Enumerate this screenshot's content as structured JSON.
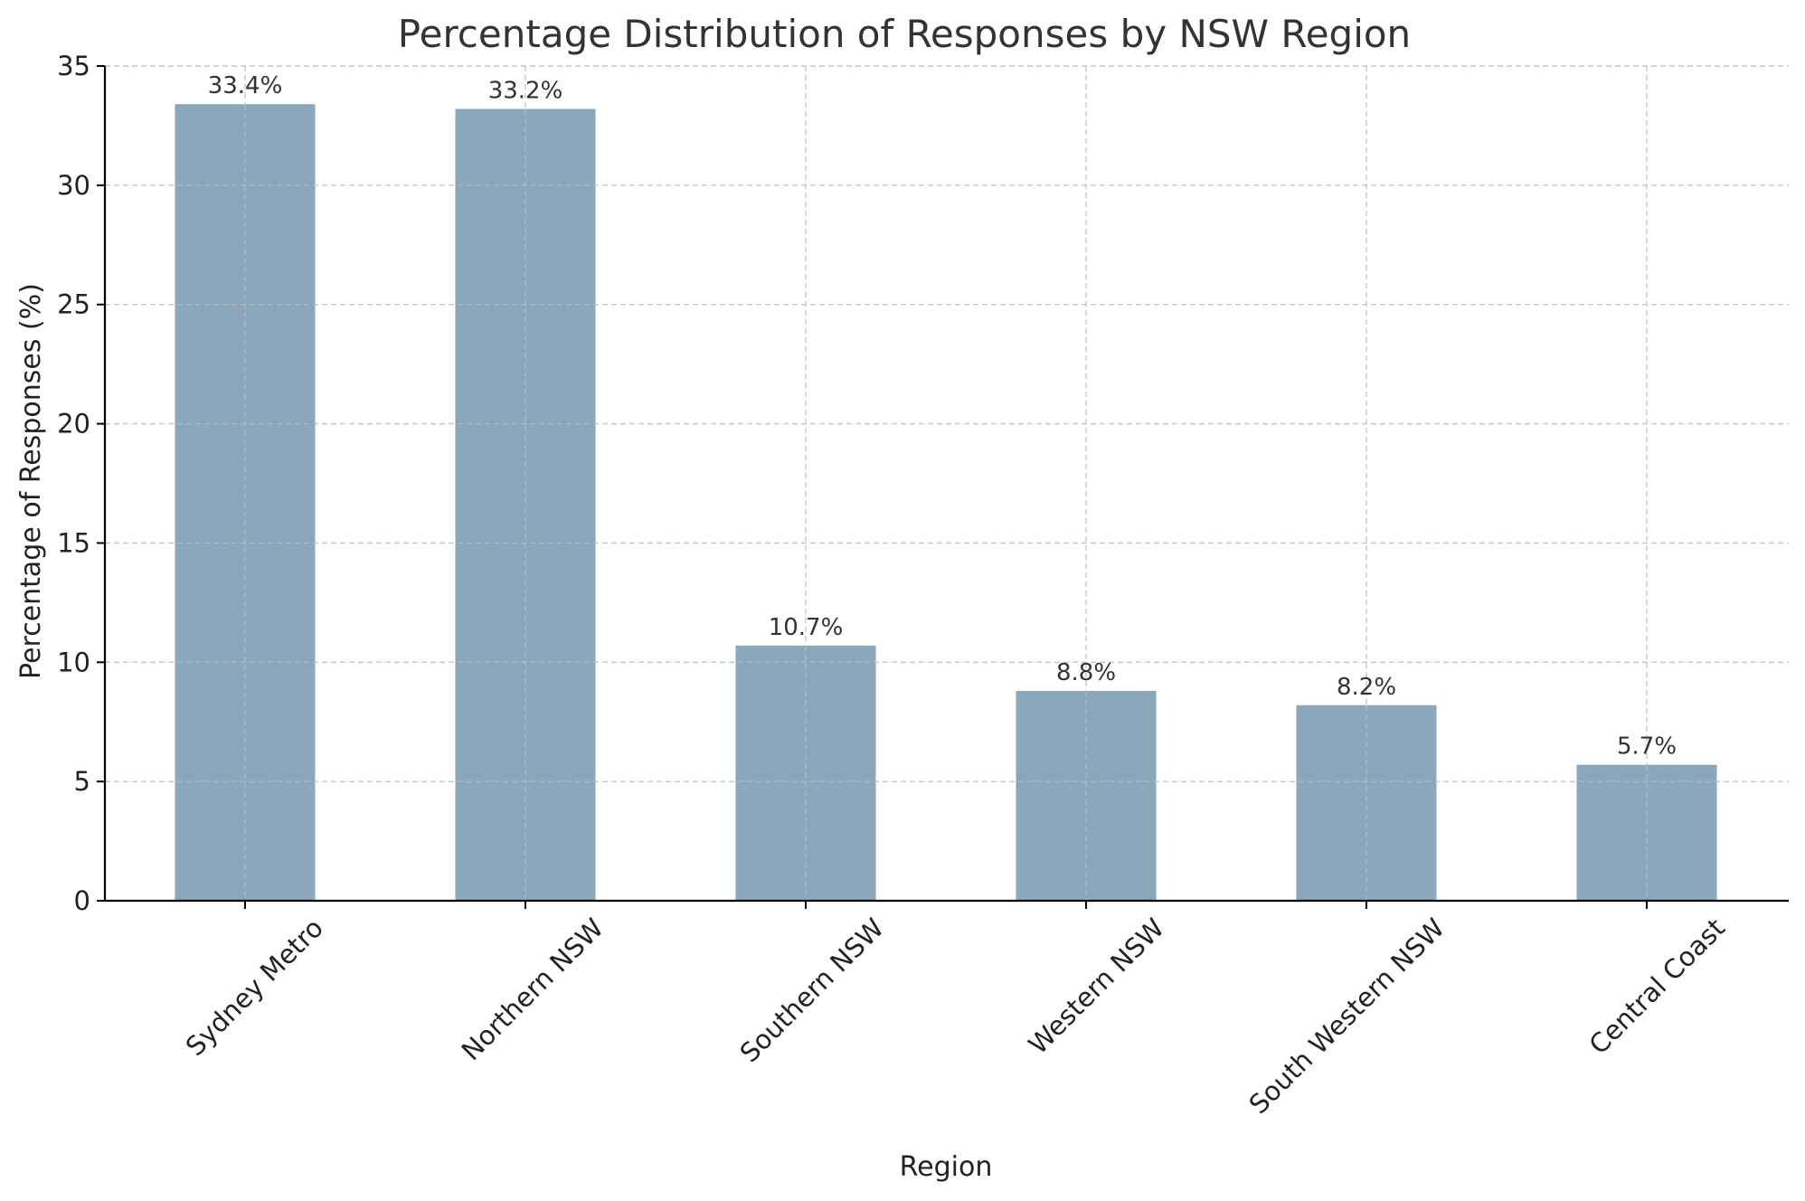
{
  "chart_data": {
    "type": "bar",
    "title": "Percentage Distribution of Responses by NSW Region",
    "xlabel": "Region",
    "ylabel": "Percentage of Responses (%)",
    "categories": [
      "Sydney Metro",
      "Northern NSW",
      "Southern NSW",
      "Western NSW",
      "South Western NSW",
      "Central Coast"
    ],
    "values": [
      33.4,
      33.2,
      10.7,
      8.8,
      8.2,
      5.7
    ],
    "data_labels": [
      "33.4%",
      "33.2%",
      "10.7%",
      "8.8%",
      "8.2%",
      "5.7%"
    ],
    "ylim": [
      0,
      35
    ],
    "yticks": [
      0,
      5,
      10,
      15,
      20,
      25,
      30,
      35
    ],
    "ytick_labels": [
      "0",
      "5",
      "10",
      "15",
      "20",
      "25",
      "30",
      "35"
    ],
    "grid": true,
    "legend": "none",
    "bar_color": "#8ba7bc"
  }
}
